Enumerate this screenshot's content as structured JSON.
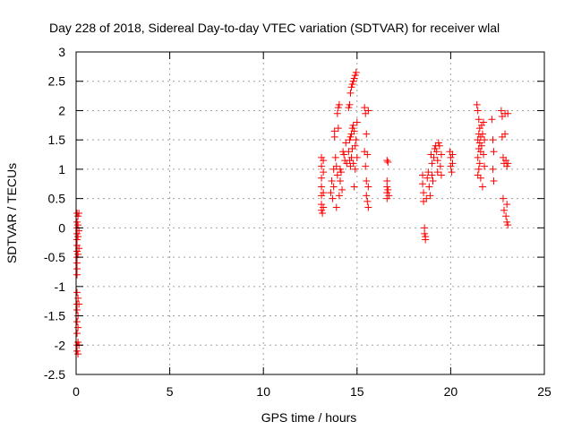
{
  "chart_data": {
    "type": "scatter",
    "title": "Day 228 of 2018, Sidereal Day-to-day VTEC variation (SDTVAR) for receiver wlal",
    "xlabel": "GPS time / hours",
    "ylabel": "SDTVAR / TECUs",
    "xlim": [
      0,
      25
    ],
    "ylim": [
      -2.5,
      3
    ],
    "xticks": [
      0,
      5,
      10,
      15,
      20,
      25
    ],
    "yticks": [
      -2.5,
      -2,
      -1.5,
      -1,
      -0.5,
      0,
      0.5,
      1,
      1.5,
      2,
      2.5,
      3
    ],
    "xtick_labels": [
      "0",
      "5",
      "10",
      "15",
      "20",
      "25"
    ],
    "ytick_labels": [
      "-2.5",
      "-2",
      "-1.5",
      "-1",
      "-0.5",
      "0",
      "0.5",
      "1",
      "1.5",
      "2",
      "2.5",
      "3"
    ],
    "grid": true,
    "marker": "plus",
    "colors": {
      "points": "#ff0000",
      "grid": "#a0a0a0",
      "axes": "#000000"
    },
    "series": [
      {
        "name": "SDTVAR",
        "points": [
          [
            0.05,
            0.25
          ],
          [
            0.05,
            0.1
          ],
          [
            0.05,
            0.0
          ],
          [
            0.05,
            -0.1
          ],
          [
            0.05,
            -0.2
          ],
          [
            0.05,
            -0.3
          ],
          [
            0.05,
            -0.4
          ],
          [
            0.05,
            -0.5
          ],
          [
            0.05,
            -0.6
          ],
          [
            0.05,
            -0.7
          ],
          [
            0.05,
            -0.8
          ],
          [
            0.05,
            -1.1
          ],
          [
            0.05,
            -1.3
          ],
          [
            0.05,
            -1.4
          ],
          [
            0.05,
            -1.6
          ],
          [
            0.05,
            -1.8
          ],
          [
            0.05,
            -2.0
          ],
          [
            0.05,
            -2.1
          ],
          [
            0.1,
            0.2
          ],
          [
            0.1,
            0.05
          ],
          [
            0.1,
            -0.15
          ],
          [
            0.1,
            -0.45
          ],
          [
            0.1,
            -1.2
          ],
          [
            0.1,
            -1.5
          ],
          [
            0.1,
            -1.7
          ],
          [
            0.1,
            -1.95
          ],
          [
            0.1,
            -2.15
          ],
          [
            0.15,
            0.25
          ],
          [
            0.15,
            -0.05
          ],
          [
            0.15,
            -0.35
          ],
          [
            0.15,
            -1.3
          ],
          [
            0.15,
            -2.0
          ],
          [
            13.1,
            1.2
          ],
          [
            13.1,
            1.05
          ],
          [
            13.1,
            0.85
          ],
          [
            13.1,
            0.7
          ],
          [
            13.1,
            0.55
          ],
          [
            13.1,
            0.4
          ],
          [
            13.1,
            0.3
          ],
          [
            13.15,
            0.25
          ],
          [
            13.2,
            0.35
          ],
          [
            13.2,
            0.6
          ],
          [
            13.2,
            0.95
          ],
          [
            13.2,
            1.15
          ],
          [
            13.6,
            0.6
          ],
          [
            13.65,
            0.8
          ],
          [
            13.7,
            0.5
          ],
          [
            13.75,
            1.0
          ],
          [
            13.75,
            0.7
          ],
          [
            13.8,
            1.55
          ],
          [
            13.8,
            1.65
          ],
          [
            13.85,
            1.2
          ],
          [
            13.9,
            1.05
          ],
          [
            13.9,
            0.35
          ],
          [
            13.95,
            0.9
          ],
          [
            13.95,
            1.95
          ],
          [
            14.0,
            2.05
          ],
          [
            14.0,
            1.7
          ],
          [
            14.05,
            2.1
          ],
          [
            14.05,
            0.55
          ],
          [
            14.1,
            0.8
          ],
          [
            14.1,
            1.0
          ],
          [
            14.15,
            0.95
          ],
          [
            14.2,
            0.65
          ],
          [
            14.25,
            1.3
          ],
          [
            14.3,
            1.25
          ],
          [
            14.35,
            1.15
          ],
          [
            14.4,
            1.45
          ],
          [
            14.45,
            1.1
          ],
          [
            14.55,
            2.05
          ],
          [
            14.55,
            1.3
          ],
          [
            14.6,
            2.1
          ],
          [
            14.6,
            1.5
          ],
          [
            14.6,
            1.15
          ],
          [
            14.65,
            2.3
          ],
          [
            14.65,
            1.55
          ],
          [
            14.65,
            1.05
          ],
          [
            14.7,
            2.4
          ],
          [
            14.7,
            1.6
          ],
          [
            14.7,
            1.2
          ],
          [
            14.75,
            2.45
          ],
          [
            14.75,
            1.7
          ],
          [
            14.75,
            1.35
          ],
          [
            14.8,
            2.5
          ],
          [
            14.8,
            1.75
          ],
          [
            14.8,
            1.1
          ],
          [
            14.85,
            2.55
          ],
          [
            14.85,
            1.65
          ],
          [
            14.85,
            0.7
          ],
          [
            14.9,
            2.6
          ],
          [
            14.9,
            1.4
          ],
          [
            14.9,
            1.0
          ],
          [
            14.95,
            2.65
          ],
          [
            14.95,
            1.5
          ],
          [
            15.0,
            1.8
          ],
          [
            15.0,
            1.2
          ],
          [
            15.4,
            2.05
          ],
          [
            15.4,
            1.3
          ],
          [
            15.45,
            1.95
          ],
          [
            15.45,
            1.05
          ],
          [
            15.5,
            1.6
          ],
          [
            15.5,
            0.8
          ],
          [
            15.5,
            0.55
          ],
          [
            15.55,
            1.25
          ],
          [
            15.55,
            0.45
          ],
          [
            15.6,
            0.7
          ],
          [
            15.6,
            0.35
          ],
          [
            15.6,
            2.0
          ],
          [
            16.6,
            1.15
          ],
          [
            16.65,
            1.12
          ],
          [
            16.6,
            0.8
          ],
          [
            16.6,
            0.7
          ],
          [
            16.6,
            0.6
          ],
          [
            16.65,
            0.65
          ],
          [
            16.7,
            0.55
          ],
          [
            16.6,
            0.5
          ],
          [
            18.5,
            0.9
          ],
          [
            18.5,
            0.75
          ],
          [
            18.55,
            0.6
          ],
          [
            18.55,
            0.45
          ],
          [
            18.6,
            0.0
          ],
          [
            18.6,
            -0.1
          ],
          [
            18.65,
            -0.15
          ],
          [
            18.65,
            -0.2
          ],
          [
            18.7,
            0.5
          ],
          [
            18.75,
            0.85
          ],
          [
            18.8,
            0.95
          ],
          [
            18.85,
            0.7
          ],
          [
            18.9,
            0.55
          ],
          [
            18.95,
            1.25
          ],
          [
            19.0,
            1.1
          ],
          [
            19.0,
            0.9
          ],
          [
            19.05,
            0.8
          ],
          [
            19.1,
            1.2
          ],
          [
            19.15,
            1.35
          ],
          [
            19.2,
            1.4
          ],
          [
            19.25,
            1.3
          ],
          [
            19.3,
            0.95
          ],
          [
            19.3,
            1.15
          ],
          [
            19.35,
            1.45
          ],
          [
            19.4,
            1.4
          ],
          [
            19.45,
            1.05
          ],
          [
            19.5,
            0.9
          ],
          [
            19.5,
            1.25
          ],
          [
            19.95,
            1.3
          ],
          [
            20.0,
            1.2
          ],
          [
            20.0,
            1.05
          ],
          [
            20.05,
            0.95
          ],
          [
            20.1,
            1.25
          ],
          [
            20.1,
            1.1
          ],
          [
            21.4,
            2.1
          ],
          [
            21.45,
            2.0
          ],
          [
            21.45,
            1.5
          ],
          [
            21.45,
            1.2
          ],
          [
            21.45,
            0.9
          ],
          [
            21.5,
            1.85
          ],
          [
            21.5,
            1.6
          ],
          [
            21.5,
            1.35
          ],
          [
            21.5,
            1.0
          ],
          [
            21.55,
            1.7
          ],
          [
            21.55,
            1.45
          ],
          [
            21.55,
            1.1
          ],
          [
            21.6,
            1.55
          ],
          [
            21.6,
            1.3
          ],
          [
            21.6,
            0.85
          ],
          [
            21.65,
            1.75
          ],
          [
            21.65,
            1.4
          ],
          [
            21.7,
            1.6
          ],
          [
            21.7,
            0.7
          ],
          [
            21.75,
            1.8
          ],
          [
            21.75,
            1.25
          ],
          [
            21.8,
            1.05
          ],
          [
            21.8,
            1.5
          ],
          [
            22.2,
            1.85
          ],
          [
            22.25,
            1.5
          ],
          [
            22.25,
            1.0
          ],
          [
            22.3,
            1.3
          ],
          [
            22.3,
            0.8
          ],
          [
            22.7,
            2.0
          ],
          [
            22.75,
            1.9
          ],
          [
            22.75,
            1.55
          ],
          [
            22.8,
            1.2
          ],
          [
            22.8,
            0.5
          ],
          [
            22.85,
            1.1
          ],
          [
            22.85,
            0.3
          ],
          [
            22.9,
            1.95
          ],
          [
            22.9,
            1.6
          ],
          [
            22.95,
            0.2
          ],
          [
            22.95,
            1.15
          ],
          [
            23.0,
            0.1
          ],
          [
            23.0,
            1.05
          ],
          [
            23.0,
            0.4
          ],
          [
            23.05,
            0.05
          ],
          [
            23.05,
            1.1
          ],
          [
            23.05,
            1.95
          ]
        ]
      }
    ]
  }
}
